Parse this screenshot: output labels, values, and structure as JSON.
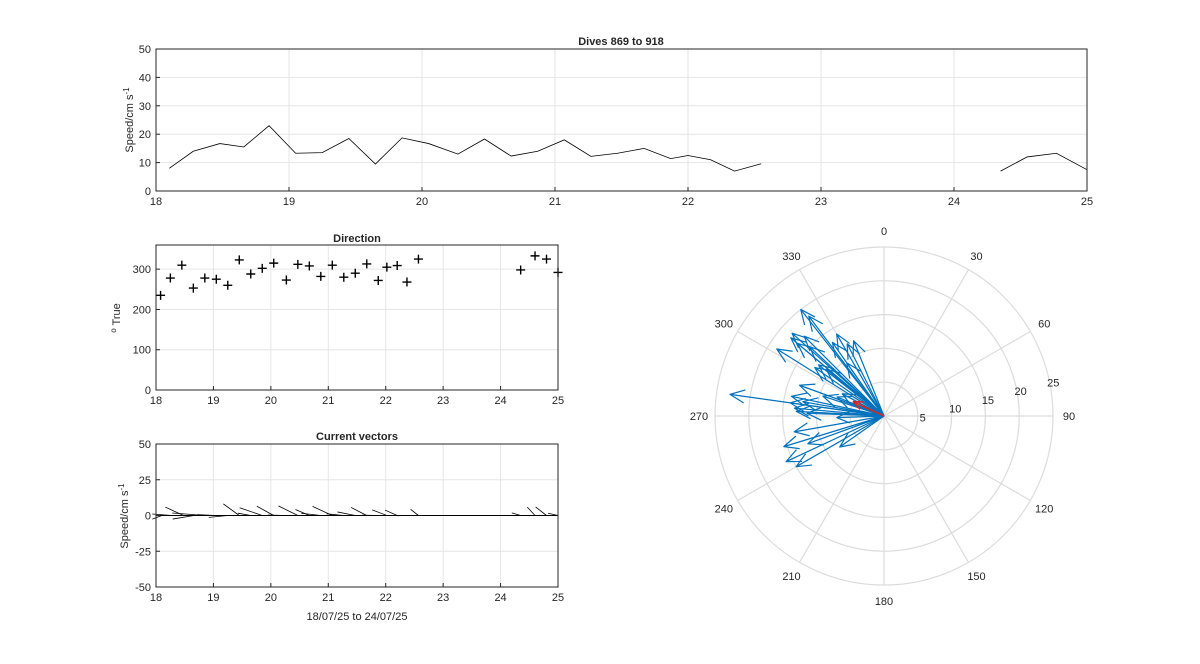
{
  "figure": {
    "panels": {
      "speed": {
        "title": "Dives 869 to 918",
        "ylabel_main": "Speed/cm s",
        "ylabel_sup": "-1",
        "ylim": [
          0,
          50
        ],
        "xlim": [
          18,
          25
        ],
        "yticks": [
          0,
          10,
          20,
          30,
          40,
          50
        ],
        "xticks": [
          18,
          19,
          20,
          21,
          22,
          23,
          24,
          25
        ]
      },
      "direction": {
        "title": "Direction",
        "ylabel_deg": "o",
        "ylabel_main": "True",
        "ylim": [
          0,
          360
        ],
        "xlim": [
          18,
          25
        ],
        "yticks": [
          0,
          100,
          200,
          300
        ],
        "xticks": [
          18,
          19,
          20,
          21,
          22,
          23,
          24,
          25
        ]
      },
      "vectors": {
        "title": "Current vectors",
        "ylabel_main": "Speed/cm s",
        "ylabel_sup": "-1",
        "xlabel": "18/07/25 to 24/07/25",
        "ylim": [
          -50,
          50
        ],
        "xlim": [
          18,
          25
        ],
        "yticks": [
          -50,
          -25,
          0,
          25,
          50
        ],
        "xticks": [
          18,
          19,
          20,
          21,
          22,
          23,
          24,
          25
        ]
      },
      "polar": {
        "rmax": 25,
        "rticks": [
          5,
          10,
          15,
          20,
          25
        ],
        "angle_labels": [
          "0",
          "30",
          "60",
          "90",
          "120",
          "150",
          "180",
          "210",
          "240",
          "270",
          "300",
          "330"
        ]
      }
    }
  },
  "chart_data": [
    {
      "type": "line",
      "title": "Dives 869 to 918",
      "ylabel": "Speed/cm s-1",
      "ylim": [
        0,
        50
      ],
      "xlim": [
        18,
        25
      ],
      "grid": true,
      "series": [
        {
          "values": [
            [
              18.1,
              8
            ],
            [
              18.28,
              14
            ],
            [
              18.48,
              16.7
            ],
            [
              18.66,
              15.5
            ],
            [
              18.85,
              23
            ],
            [
              19.05,
              13.3
            ],
            [
              19.25,
              13.5
            ],
            [
              19.45,
              18.5
            ],
            [
              19.65,
              9.5
            ],
            [
              19.85,
              18.7
            ],
            [
              20.05,
              16.7
            ],
            [
              20.27,
              13
            ],
            [
              20.47,
              18.3
            ],
            [
              20.67,
              12.3
            ],
            [
              20.87,
              14
            ],
            [
              21.07,
              18
            ],
            [
              21.27,
              12.2
            ],
            [
              21.47,
              13.3
            ],
            [
              21.67,
              15
            ],
            [
              21.87,
              11.4
            ],
            [
              22.0,
              12.5
            ],
            [
              22.17,
              11
            ],
            [
              22.35,
              7
            ],
            [
              22.55,
              9.6
            ],
            null,
            [
              24.35,
              7
            ],
            [
              24.55,
              12
            ],
            [
              24.77,
              13.3
            ],
            [
              25.0,
              7.5
            ]
          ]
        }
      ]
    },
    {
      "type": "scatter",
      "title": "Direction",
      "ylabel": "o True",
      "ylim": [
        0,
        360
      ],
      "xlim": [
        18,
        25
      ],
      "grid": true,
      "points": [
        [
          18.08,
          235
        ],
        [
          18.25,
          278
        ],
        [
          18.45,
          310
        ],
        [
          18.65,
          253
        ],
        [
          18.85,
          278
        ],
        [
          19.05,
          275
        ],
        [
          19.25,
          260
        ],
        [
          19.45,
          323
        ],
        [
          19.65,
          288
        ],
        [
          19.85,
          302
        ],
        [
          20.05,
          315
        ],
        [
          20.27,
          273
        ],
        [
          20.47,
          312
        ],
        [
          20.67,
          308
        ],
        [
          20.87,
          282
        ],
        [
          21.07,
          310
        ],
        [
          21.27,
          280
        ],
        [
          21.47,
          290
        ],
        [
          21.67,
          313
        ],
        [
          21.87,
          272
        ],
        [
          22.02,
          305
        ],
        [
          22.2,
          309
        ],
        [
          22.37,
          268
        ],
        [
          22.57,
          325
        ],
        [
          24.35,
          298
        ],
        [
          24.6,
          333
        ],
        [
          24.8,
          325
        ],
        [
          25.0,
          292
        ]
      ]
    },
    {
      "type": "vectors",
      "title": "Current vectors",
      "ylabel": "Speed/cm s-1",
      "xlabel": "18/07/25 to 24/07/25",
      "ylim": [
        -50,
        50
      ],
      "xlim": [
        18,
        25
      ],
      "grid": true,
      "vectors": [
        [
          18.1,
          8,
          235
        ],
        [
          18.28,
          14,
          278
        ],
        [
          18.48,
          16.7,
          310
        ],
        [
          18.66,
          15.5,
          253
        ],
        [
          18.85,
          23,
          278
        ],
        [
          19.05,
          13.3,
          275
        ],
        [
          19.25,
          13.5,
          260
        ],
        [
          19.45,
          18.5,
          323
        ],
        [
          19.65,
          9.5,
          288
        ],
        [
          19.85,
          18.7,
          302
        ],
        [
          20.05,
          16.7,
          315
        ],
        [
          20.27,
          13,
          273
        ],
        [
          20.47,
          18.3,
          312
        ],
        [
          20.67,
          12.3,
          308
        ],
        [
          20.87,
          14,
          282
        ],
        [
          21.07,
          18,
          310
        ],
        [
          21.27,
          12.2,
          280
        ],
        [
          21.47,
          13.3,
          290
        ],
        [
          21.67,
          15,
          313
        ],
        [
          21.87,
          11.4,
          272
        ],
        [
          22.02,
          12.5,
          305
        ],
        [
          22.2,
          11,
          309
        ],
        [
          22.37,
          7,
          268
        ],
        [
          22.57,
          9.6,
          325
        ],
        [
          24.35,
          7,
          298
        ],
        [
          24.6,
          12,
          333
        ],
        [
          24.8,
          13.3,
          325
        ],
        [
          25.0,
          7.5,
          292
        ]
      ]
    },
    {
      "type": "polar_vectors",
      "rmax": 25,
      "colors": {
        "vectors": "#0072BD",
        "mean": "#D62728"
      },
      "mean": [
        5,
        295
      ],
      "vectors": [
        [
          8,
          235
        ],
        [
          14,
          278
        ],
        [
          16.7,
          310
        ],
        [
          15.5,
          253
        ],
        [
          23,
          278
        ],
        [
          13.3,
          275
        ],
        [
          13.5,
          260
        ],
        [
          18.5,
          323
        ],
        [
          9.5,
          288
        ],
        [
          18.7,
          302
        ],
        [
          16.7,
          315
        ],
        [
          13,
          273
        ],
        [
          18.3,
          312
        ],
        [
          12.3,
          308
        ],
        [
          14,
          282
        ],
        [
          18,
          310
        ],
        [
          12.2,
          280
        ],
        [
          13.3,
          290
        ],
        [
          15,
          313
        ],
        [
          11.4,
          272
        ],
        [
          12.5,
          305
        ],
        [
          11,
          309
        ],
        [
          7,
          268
        ],
        [
          9.6,
          325
        ],
        [
          7,
          298
        ],
        [
          12,
          333
        ],
        [
          13.3,
          325
        ],
        [
          7.5,
          292
        ],
        [
          15,
          240
        ],
        [
          16,
          245
        ],
        [
          12,
          250
        ],
        [
          20,
          322
        ],
        [
          14,
          330
        ],
        [
          12,
          338
        ]
      ]
    }
  ]
}
